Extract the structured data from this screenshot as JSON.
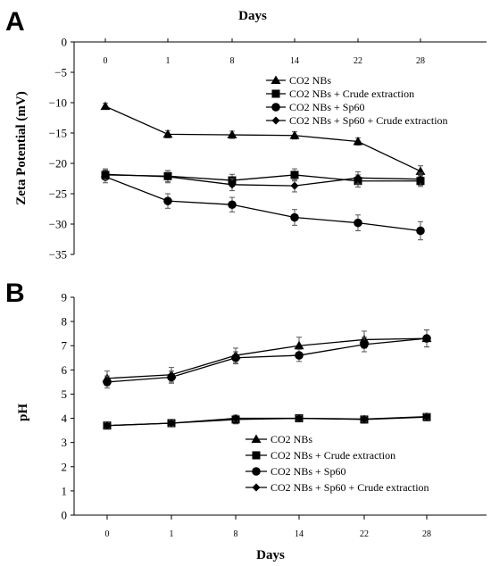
{
  "chart_data": [
    {
      "type": "line",
      "panel_label": "A",
      "title": "",
      "xlabel": "Days",
      "xlabel_position": "top",
      "ylabel": "Zeta Potential (mV)",
      "categories": [
        "0",
        "1",
        "8",
        "14",
        "22",
        "28"
      ],
      "ylim": [
        -35,
        0
      ],
      "yticks": [
        0,
        -5,
        -10,
        -15,
        -20,
        -25,
        -30,
        -35
      ],
      "ytick_labels": [
        "0",
        "−5",
        "−10",
        "−15",
        "−20",
        "−25",
        "−30",
        "−35"
      ],
      "grid": false,
      "legend": "top-right",
      "series": [
        {
          "name": "CO2 NBs",
          "marker": "triangle",
          "values": [
            -10.6,
            -15.2,
            -15.3,
            -15.4,
            -16.4,
            -21.3
          ],
          "errors": [
            0.5,
            0.6,
            0.6,
            0.6,
            0.6,
            0.9
          ]
        },
        {
          "name": "CO2 NBs + Crude extraction",
          "marker": "square",
          "values": [
            -21.9,
            -22.1,
            -22.8,
            -21.9,
            -22.9,
            -22.9
          ],
          "errors": [
            0.8,
            0.9,
            1.0,
            1.0,
            1.0,
            0.9
          ]
        },
        {
          "name": "CO2 NBs + Sp60",
          "marker": "circle",
          "values": [
            -22.2,
            -26.2,
            -26.8,
            -28.9,
            -29.8,
            -31.1
          ],
          "errors": [
            1.0,
            1.2,
            1.2,
            1.3,
            1.3,
            1.5
          ]
        },
        {
          "name": "CO2 NBs + Sp60 + Crude extraction",
          "marker": "diamond",
          "values": [
            -21.8,
            -22.2,
            -23.5,
            -23.7,
            -22.4,
            -22.6
          ],
          "errors": [
            0.9,
            1.0,
            1.0,
            1.0,
            1.0,
            1.0
          ]
        }
      ]
    },
    {
      "type": "line",
      "panel_label": "B",
      "title": "",
      "xlabel": "Days",
      "xlabel_position": "bottom",
      "ylabel": "pH",
      "categories": [
        "0",
        "1",
        "8",
        "14",
        "22",
        "28"
      ],
      "ylim": [
        0,
        9
      ],
      "yticks": [
        0,
        1,
        2,
        3,
        4,
        5,
        6,
        7,
        8,
        9
      ],
      "ytick_labels": [
        "0",
        "1",
        "2",
        "3",
        "4",
        "5",
        "6",
        "7",
        "8",
        "9"
      ],
      "grid": false,
      "legend": "bottom-right",
      "series": [
        {
          "name": "CO2 NBs",
          "marker": "triangle",
          "values": [
            5.65,
            5.8,
            6.6,
            7.0,
            7.25,
            7.3
          ],
          "errors": [
            0.3,
            0.3,
            0.3,
            0.35,
            0.35,
            0.35
          ]
        },
        {
          "name": "CO2 NBs + Crude extraction",
          "marker": "square",
          "values": [
            3.7,
            3.8,
            3.95,
            4.0,
            3.95,
            4.05
          ],
          "errors": [
            0.12,
            0.15,
            0.18,
            0.12,
            0.15,
            0.15
          ]
        },
        {
          "name": "CO2 NBs + Sp60",
          "marker": "circle",
          "values": [
            5.5,
            5.7,
            6.5,
            6.6,
            7.05,
            7.3
          ],
          "errors": [
            0.25,
            0.25,
            0.25,
            0.25,
            0.3,
            0.35
          ]
        },
        {
          "name": "CO2 NBs + Sp60 + Crude extraction",
          "marker": "diamond",
          "values": [
            3.7,
            3.8,
            4.0,
            4.0,
            3.97,
            4.07
          ],
          "errors": [
            0.12,
            0.12,
            0.12,
            0.12,
            0.12,
            0.12
          ]
        }
      ]
    }
  ]
}
